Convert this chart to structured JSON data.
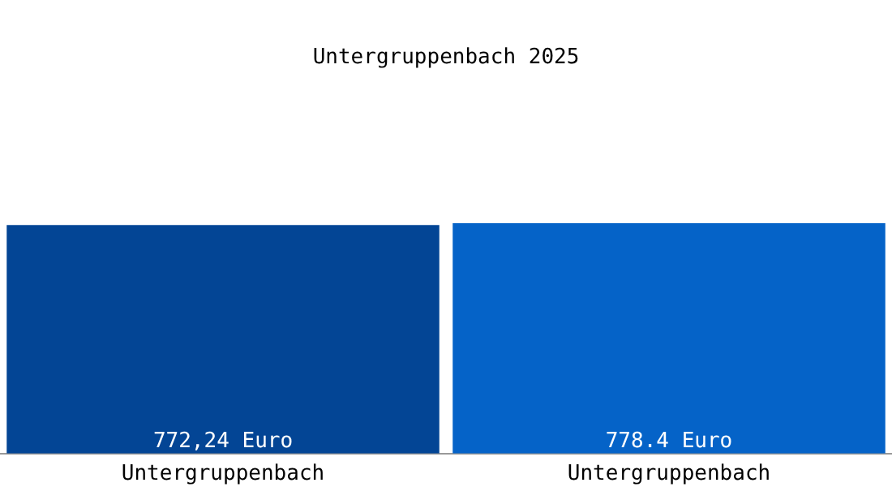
{
  "chart_data": {
    "type": "bar",
    "title": "Untergruppenbach 2025",
    "categories": [
      "Untergruppenbach",
      "Untergruppenbach"
    ],
    "values": [
      772.24,
      778.4
    ],
    "colors": [
      "#034595",
      "#0563c8"
    ],
    "value_labels": [
      "772,24 Euro",
      "778.4 Euro"
    ],
    "grid": false,
    "legend": false
  }
}
